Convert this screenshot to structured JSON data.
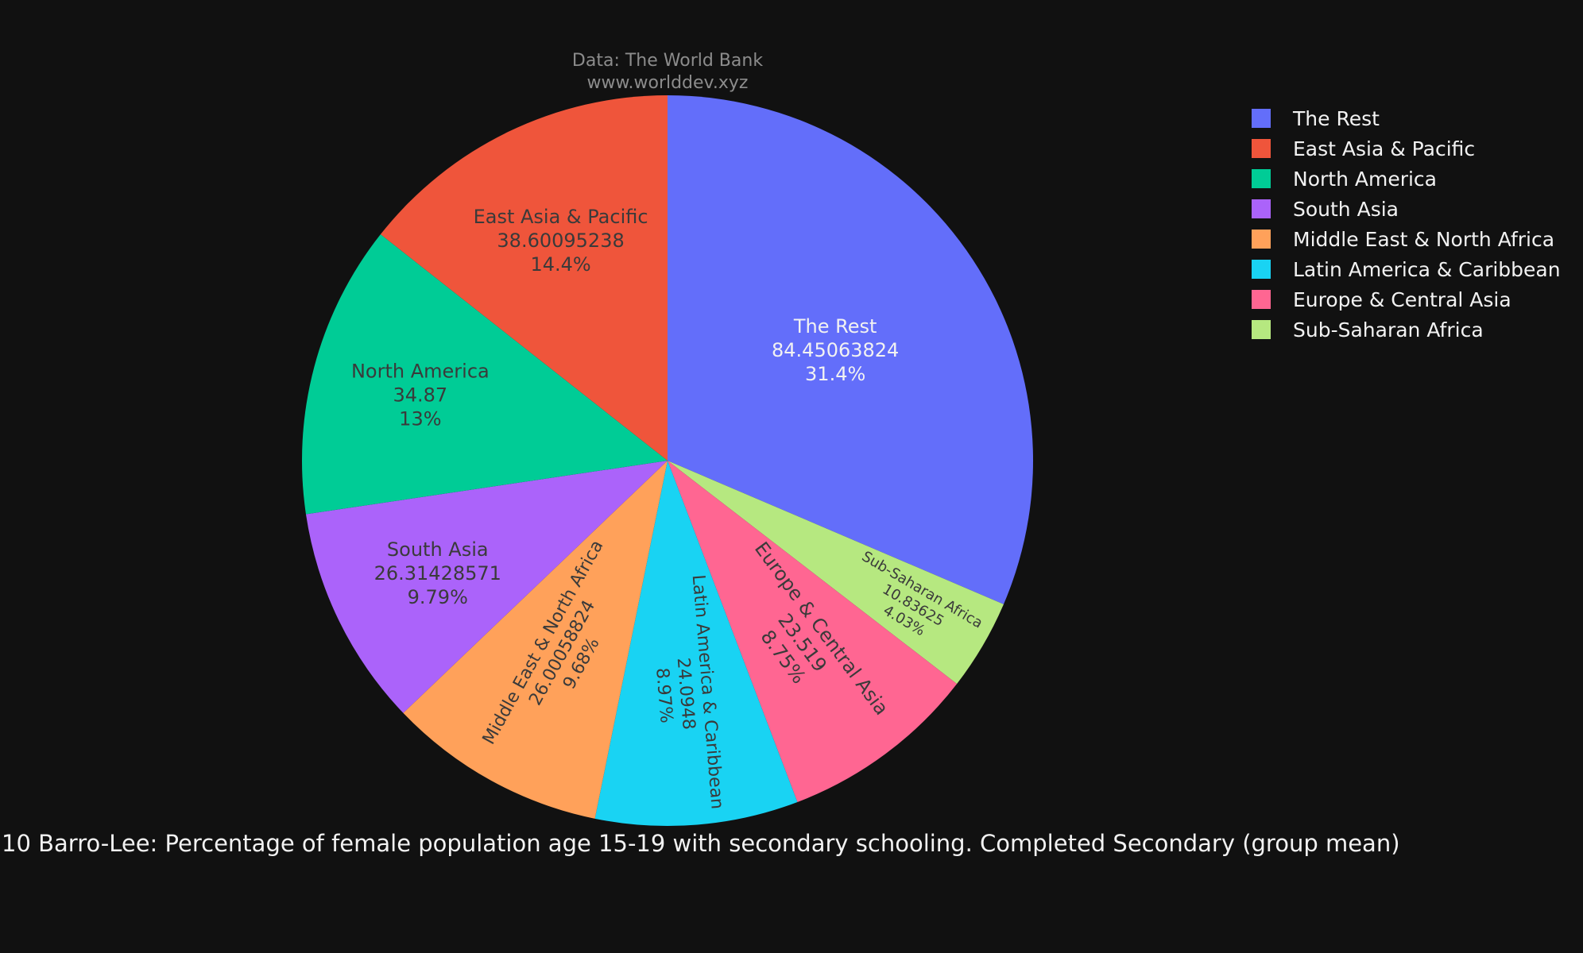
{
  "chart_data": {
    "type": "pie",
    "title": "10 Barro-Lee: Percentage of female population age 15-19 with secondary schooling. Completed Secondary (group mean)",
    "annotation_lines": [
      "Data: The World Bank",
      "www.worlddev.xyz"
    ],
    "legend_placement": "top-right",
    "slices": [
      {
        "label": "The Rest",
        "value_text": "84.45063824",
        "value": 84.45063824,
        "percent_text": "31.4%",
        "color": "#636efa"
      },
      {
        "label": "Sub-Saharan Africa",
        "value_text": "10.83625",
        "value": 10.83625,
        "percent_text": "4.03%",
        "color": "#b6e880"
      },
      {
        "label": "Europe & Central Asia",
        "value_text": "23.519",
        "value": 23.519,
        "percent_text": "8.75%",
        "color": "#ff6692"
      },
      {
        "label": "Latin America & Caribbean",
        "value_text": "24.0948",
        "value": 24.0948,
        "percent_text": "8.97%",
        "color": "#19d3f3"
      },
      {
        "label": "Middle East & North Africa",
        "value_text": "26.00058824",
        "value": 26.00058824,
        "percent_text": "9.68%",
        "color": "#ffa15a"
      },
      {
        "label": "South Asia",
        "value_text": "26.31428571",
        "value": 26.31428571,
        "percent_text": "9.79%",
        "color": "#ab63fa"
      },
      {
        "label": "North America",
        "value_text": "34.87",
        "value": 34.87,
        "percent_text": "13%",
        "color": "#00cc96"
      },
      {
        "label": "East Asia & Pacific",
        "value_text": "38.60095238",
        "value": 38.60095238,
        "percent_text": "14.4%",
        "color": "#ef553b"
      }
    ],
    "legend": [
      {
        "label": "The Rest",
        "color": "#636efa"
      },
      {
        "label": "East Asia & Pacific",
        "color": "#ef553b"
      },
      {
        "label": "North America",
        "color": "#00cc96"
      },
      {
        "label": "South Asia",
        "color": "#ab63fa"
      },
      {
        "label": "Middle East & North Africa",
        "color": "#ffa15a"
      },
      {
        "label": "Latin America & Caribbean",
        "color": "#19d3f3"
      },
      {
        "label": "Europe & Central Asia",
        "color": "#ff6692"
      },
      {
        "label": "Sub-Saharan Africa",
        "color": "#b6e880"
      }
    ]
  }
}
